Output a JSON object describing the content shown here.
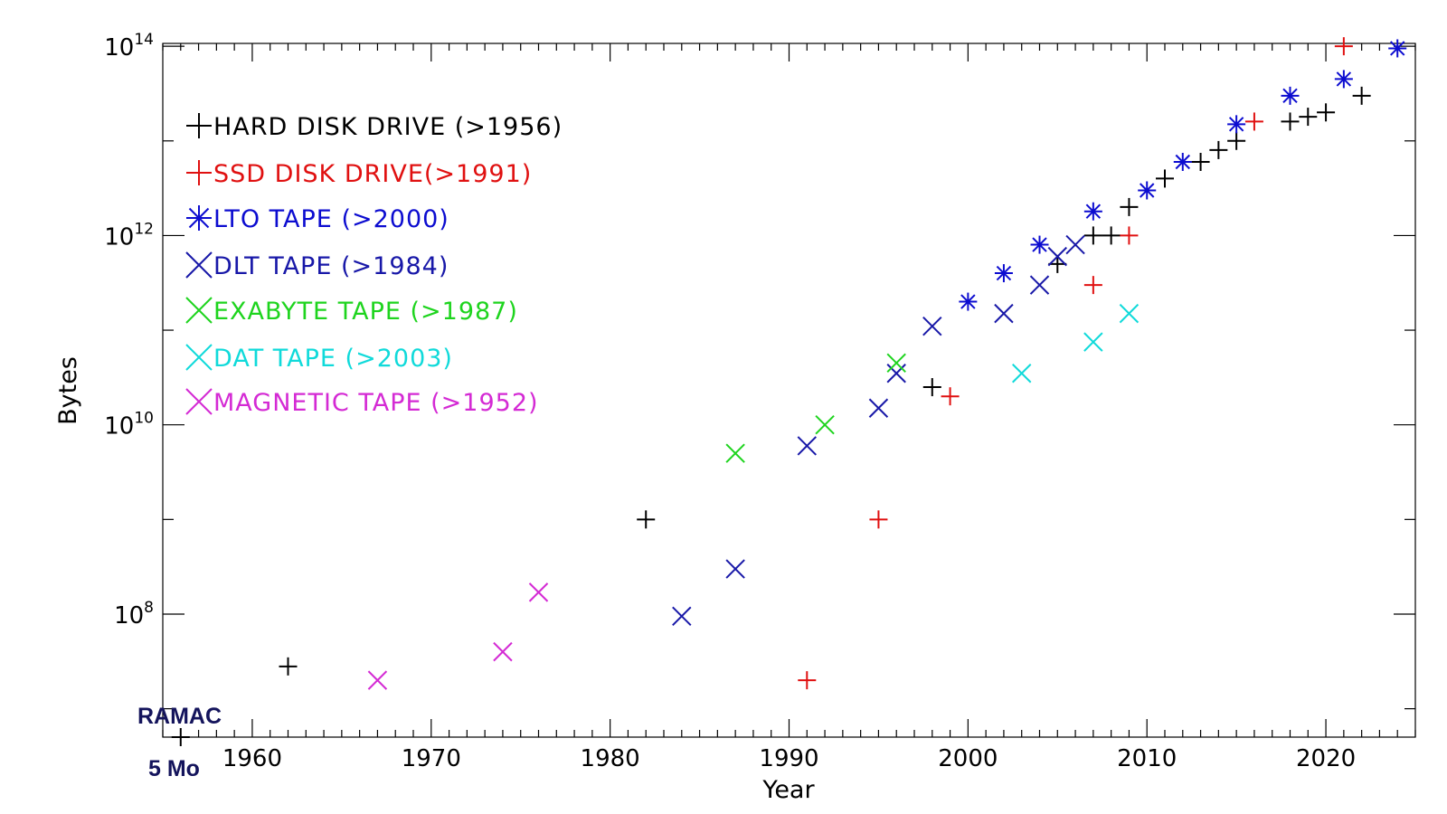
{
  "chart_data": {
    "type": "scatter",
    "title": "",
    "xlabel": "Year",
    "ylabel": "Bytes",
    "xlim": [
      1955,
      2025
    ],
    "ylim_log10": [
      6.7,
      14.03
    ],
    "xticks": [
      1960,
      1970,
      1980,
      1990,
      2000,
      2010,
      2020
    ],
    "xtick_labels": [
      "1960",
      "1970",
      "1980",
      "1990",
      "2000",
      "2010",
      "2020"
    ],
    "yticks": [
      {
        "base": "10",
        "exp": "8",
        "log": 8
      },
      {
        "base": "10",
        "exp": "10",
        "log": 10
      },
      {
        "base": "10",
        "exp": "12",
        "log": 12
      },
      {
        "base": "10",
        "exp": "14",
        "log": 14
      }
    ],
    "grid": false,
    "legend_position": "top-left",
    "series": [
      {
        "name": "HARD DISK DRIVE (>1956)",
        "color": "#000000",
        "marker": "plus",
        "points": [
          [
            1956,
            5000000.0
          ],
          [
            1962,
            28000000.0
          ],
          [
            1982,
            1000000000.0
          ],
          [
            1998,
            25000000000.0
          ],
          [
            2005,
            500000000000.0
          ],
          [
            2007,
            1000000000000.0
          ],
          [
            2008,
            1000000000000.0
          ],
          [
            2009,
            2000000000000.0
          ],
          [
            2011,
            4000000000000.0
          ],
          [
            2013,
            6000000000000.0
          ],
          [
            2014,
            8000000000000.0
          ],
          [
            2015,
            10000000000000.0
          ],
          [
            2018,
            16000000000000.0
          ],
          [
            2019,
            18000000000000.0
          ],
          [
            2020,
            20000000000000.0
          ],
          [
            2022,
            30000000000000.0
          ]
        ]
      },
      {
        "name": "SSD DISK DRIVE(>1991)",
        "color": "#e01010",
        "marker": "plus",
        "points": [
          [
            1991,
            20000000.0
          ],
          [
            1995,
            1000000000.0
          ],
          [
            1999,
            20000000000.0
          ],
          [
            2007,
            300000000000.0
          ],
          [
            2009,
            1000000000000.0
          ],
          [
            2016,
            16000000000000.0
          ],
          [
            2021,
            100000000000000.0
          ]
        ]
      },
      {
        "name": "LTO TAPE (>2000)",
        "color": "#0c0cd0",
        "marker": "asterisk",
        "points": [
          [
            2000,
            200000000000.0
          ],
          [
            2002,
            400000000000.0
          ],
          [
            2004,
            800000000000.0
          ],
          [
            2007,
            1800000000000.0
          ],
          [
            2010,
            3000000000000.0
          ],
          [
            2012,
            6000000000000.0
          ],
          [
            2015,
            15000000000000.0
          ],
          [
            2018,
            30000000000000.0
          ],
          [
            2021,
            45000000000000.0
          ],
          [
            2024,
            95000000000000.0
          ]
        ]
      },
      {
        "name": "DLT TAPE (>1984)",
        "color": "#1818a8",
        "marker": "x",
        "points": [
          [
            1984,
            95000000.0
          ],
          [
            1987,
            300000000.0
          ],
          [
            1991,
            6000000000.0
          ],
          [
            1995,
            15000000000.0
          ],
          [
            1996,
            35000000000.0
          ],
          [
            1998,
            110000000000.0
          ],
          [
            2002,
            150000000000.0
          ],
          [
            2004,
            300000000000.0
          ],
          [
            2005,
            600000000000.0
          ],
          [
            2006,
            800000000000.0
          ]
        ]
      },
      {
        "name": "EXABYTE TAPE (>1987)",
        "color": "#1ed41e",
        "marker": "x",
        "points": [
          [
            1987,
            5000000000.0
          ],
          [
            1992,
            10000000000.0
          ],
          [
            1996,
            45000000000.0
          ]
        ]
      },
      {
        "name": "DAT TAPE (>2003)",
        "color": "#10dada",
        "marker": "x",
        "points": [
          [
            2003,
            35000000000.0
          ],
          [
            2007,
            75000000000.0
          ],
          [
            2009,
            150000000000.0
          ]
        ]
      },
      {
        "name": "MAGNETIC TAPE (>1952)",
        "color": "#d42ad4",
        "marker": "x",
        "points": [
          [
            1967,
            20000000.0
          ],
          [
            1974,
            40000000.0
          ],
          [
            1976,
            170000000.0
          ]
        ]
      }
    ],
    "annotations": [
      {
        "text": "RAMAC"
      },
      {
        "text": "5 Mo"
      }
    ]
  }
}
